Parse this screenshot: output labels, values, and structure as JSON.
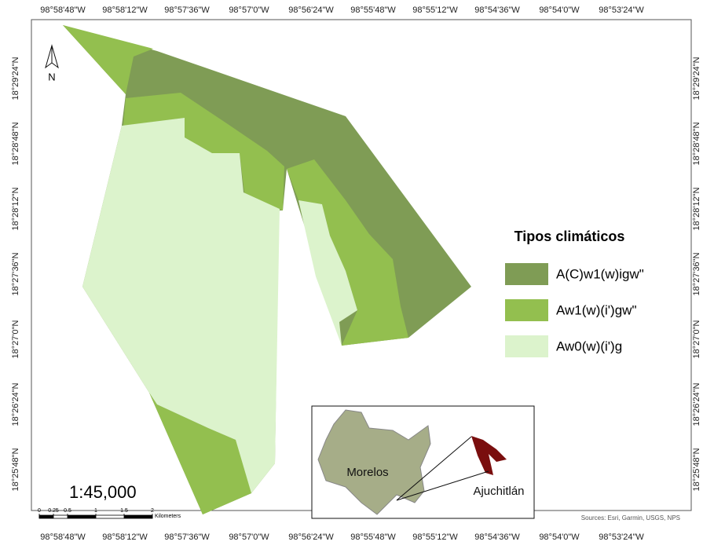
{
  "map": {
    "longitude_labels": [
      "98°58'48\"W",
      "98°58'12\"W",
      "98°57'36\"W",
      "98°57'0\"W",
      "98°56'24\"W",
      "98°55'48\"W",
      "98°55'12\"W",
      "98°54'36\"W",
      "98°54'0\"W",
      "98°53'24\"W"
    ],
    "latitude_labels": [
      "18°29'24\"N",
      "18°28'48\"N",
      "18°28'12\"N",
      "18°27'36\"N",
      "18°27'0\"N",
      "18°26'24\"N",
      "18°25'48\"N"
    ],
    "north_label": "N",
    "legend": {
      "title": "Tipos climáticos",
      "items": [
        {
          "label": "A(C)w1(w)igw\"",
          "color": "#7f9c55"
        },
        {
          "label": "Aw1(w)(i')gw\"",
          "color": "#93bf4f"
        },
        {
          "label": "Aw0(w)(i')g",
          "color": "#dcf3cc"
        }
      ]
    },
    "scale": "1:45,000",
    "scale_bar": {
      "labels": [
        "0",
        "0.25",
        "0.5",
        "1",
        "1.5",
        "2"
      ],
      "unit": "Kilometers"
    },
    "inset": {
      "labels": [
        "Morelos",
        "Ajuchitlán"
      ]
    },
    "source": "Sources: Esri, Garmin, USGS, NPS"
  }
}
